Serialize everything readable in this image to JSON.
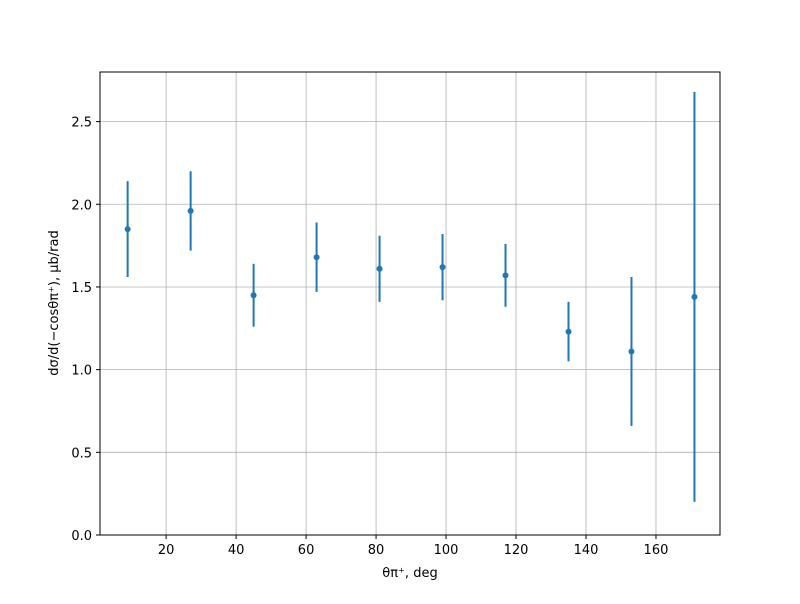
{
  "chart_data": {
    "type": "errorbar",
    "xlabel": "θπ⁺, deg",
    "ylabel": "dσ/d(−cosθπ⁺), μb/rad",
    "x": [
      9,
      27,
      45,
      63,
      81,
      99,
      117,
      135,
      153,
      171
    ],
    "series": [
      {
        "color": "#1f77b4",
        "values": [
          1.85,
          1.96,
          1.45,
          1.68,
          1.61,
          1.62,
          1.57,
          1.23,
          1.11,
          1.44
        ],
        "errors": [
          0.29,
          0.24,
          0.19,
          0.21,
          0.2,
          0.2,
          0.19,
          0.18,
          0.45,
          1.24
        ]
      }
    ],
    "xlim": [
      1.1,
      178.3
    ],
    "ylim": [
      0,
      2.8
    ],
    "xticks": [
      20,
      40,
      60,
      80,
      100,
      120,
      140,
      160
    ],
    "yticks": [
      {
        "value": 0,
        "label": "0.0"
      },
      {
        "value": 0.5,
        "label": "0.5"
      },
      {
        "value": 1,
        "label": "1.0"
      },
      {
        "value": 1.5,
        "label": "1.5"
      },
      {
        "value": 2,
        "label": "2.0"
      },
      {
        "value": 2.5,
        "label": "2.5"
      }
    ],
    "grid": true
  }
}
